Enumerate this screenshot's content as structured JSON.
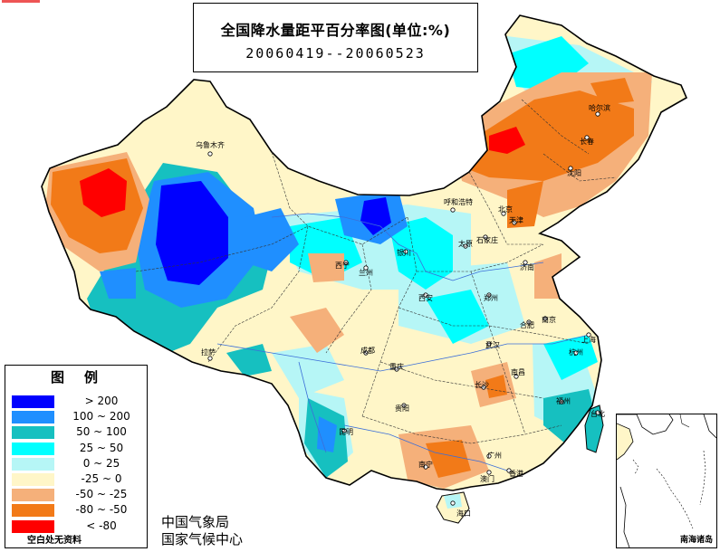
{
  "title": "全国降水量距平百分率图(单位:%)",
  "date_range": "20060419--20060523",
  "legend": {
    "title": "图例",
    "items": [
      {
        "label": "> 200",
        "color": "#0000ff"
      },
      {
        "label": "100 ~ 200",
        "color": "#1f8fff"
      },
      {
        "label": "50 ~ 100",
        "color": "#16c0c0"
      },
      {
        "label": "25 ~ 50",
        "color": "#00ffff"
      },
      {
        "label": "0 ~ 25",
        "color": "#b6f6f6"
      },
      {
        "label": "-25 ~ 0",
        "color": "#fff6c8"
      },
      {
        "label": "-50 ~ -25",
        "color": "#f5b07a"
      },
      {
        "label": "-80 ~ -50",
        "color": "#f27a18"
      },
      {
        "label": "< -80",
        "color": "#ff0000"
      }
    ],
    "note": "空白处无资料"
  },
  "credits": {
    "line1": "中国气象局",
    "line2": "国家气候中心"
  },
  "inset_label": "南海诸岛",
  "cities": [
    "乌鲁木齐",
    "哈尔滨",
    "长春",
    "沈阳",
    "呼和浩特",
    "北京",
    "天津",
    "石家庄",
    "太原",
    "银川",
    "西宁",
    "兰州",
    "济南",
    "郑州",
    "西安",
    "合肥",
    "南京",
    "上海",
    "武汉",
    "杭州",
    "拉萨",
    "成都",
    "重庆",
    "南昌",
    "长沙",
    "福州",
    "贵阳",
    "台北",
    "昆明",
    "南宁",
    "广州",
    "香港",
    "澳门",
    "海口"
  ]
}
